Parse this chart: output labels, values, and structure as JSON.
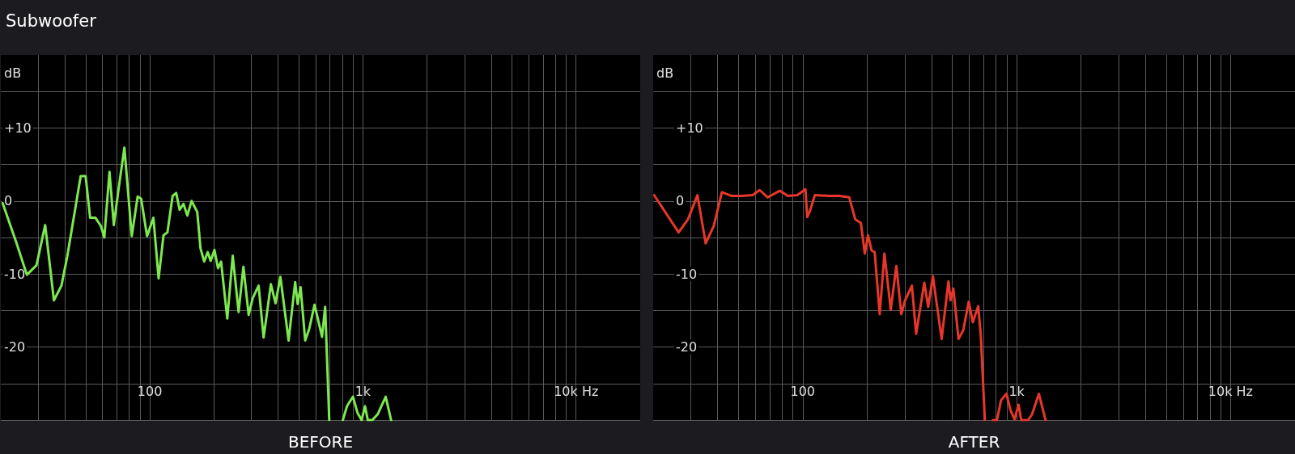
{
  "chart_data": [
    {
      "type": "line",
      "title": "Subwoofer",
      "xlabel": "BEFORE",
      "ylabel": "dB",
      "color": "#7de84f",
      "log": "x",
      "grid": true,
      "marker": "none",
      "xlim": [
        20,
        20000
      ],
      "ylim": [
        -30,
        20
      ],
      "xticks": [
        {
          "value": 30,
          "label": null
        },
        {
          "value": 40,
          "label": null
        },
        {
          "value": 50,
          "label": null
        },
        {
          "value": 60,
          "label": null
        },
        {
          "value": 70,
          "label": null
        },
        {
          "value": 80,
          "label": null
        },
        {
          "value": 90,
          "label": null
        },
        100,
        {
          "value": 200,
          "label": null
        },
        {
          "value": 300,
          "label": null
        },
        {
          "value": 400,
          "label": null
        },
        {
          "value": 500,
          "label": null
        },
        {
          "value": 600,
          "label": null
        },
        {
          "value": 700,
          "label": null
        },
        {
          "value": 800,
          "label": null
        },
        {
          "value": 900,
          "label": null
        },
        {
          "value": 1000,
          "label": "1k"
        },
        {
          "value": 2000,
          "label": null
        },
        {
          "value": 3000,
          "label": null
        },
        {
          "value": 4000,
          "label": null
        },
        {
          "value": 5000,
          "label": null
        },
        {
          "value": 6000,
          "label": null
        },
        {
          "value": 7000,
          "label": null
        },
        {
          "value": 8000,
          "label": null
        },
        {
          "value": 9000,
          "label": null
        },
        {
          "value": 10000,
          "label": "10k Hz"
        }
      ],
      "yticks": [
        {
          "value": -30,
          "label": null
        },
        {
          "value": -25,
          "label": null
        },
        -20,
        {
          "value": -15,
          "label": null
        },
        -10,
        {
          "value": -5,
          "label": null
        },
        0,
        {
          "value": 5,
          "label": null
        },
        {
          "value": 10,
          "label": "+10"
        },
        {
          "value": 15,
          "label": null
        }
      ],
      "x": [
        20.4,
        23.6,
        26.5,
        29.4,
        32.3,
        35.5,
        38.5,
        41,
        47.4,
        50,
        52.5,
        55.6,
        58.9,
        61.2,
        64.7,
        67.8,
        71.2,
        76,
        82.3,
        87.7,
        91.1,
        97.1,
        104,
        110,
        116,
        121,
        128,
        133,
        138,
        144,
        150,
        157,
        167,
        173,
        180,
        187,
        193,
        201,
        209,
        216,
        231,
        245,
        261,
        275,
        291,
        304,
        324,
        342,
        370,
        389,
        410,
        448,
        481,
        494,
        510,
        536,
        560,
        593,
        643,
        665,
        695,
        750,
        805,
        842,
        898,
        943,
        986,
        1023,
        1054,
        1107,
        1173,
        1279,
        1356
      ],
      "values": [
        -0.3,
        -5.6,
        -10.1,
        -8.8,
        -3.3,
        -13.6,
        -11.6,
        -7.6,
        3.4,
        3.4,
        -2.3,
        -2.3,
        -3.4,
        -5,
        4,
        -3.3,
        1.4,
        7.3,
        -4.8,
        0.6,
        0.3,
        -4.8,
        -2.3,
        -10.6,
        -4.7,
        -4.3,
        0.7,
        1.1,
        -1.2,
        -0.4,
        -2,
        0,
        -1.5,
        -6.5,
        -8.3,
        -7,
        -8.2,
        -6.7,
        -9.2,
        -8.3,
        -16.1,
        -7.5,
        -15.2,
        -9,
        -15.6,
        -13.3,
        -11.6,
        -18.7,
        -11.4,
        -14,
        -10.4,
        -19.1,
        -11.1,
        -14.1,
        -11.8,
        -19.1,
        -17.5,
        -14.2,
        -18.6,
        -14.5,
        -30,
        null,
        -30,
        -28.1,
        -26.8,
        -29,
        -30,
        -28.1,
        -30,
        -30,
        -29.2,
        -26.8,
        -30
      ]
    },
    {
      "type": "line",
      "xlabel": "AFTER",
      "ylabel": "dB",
      "color": "#e8372a",
      "log": "x",
      "grid": true,
      "marker": "none",
      "xlim": [
        20,
        20000
      ],
      "ylim": [
        -30,
        20
      ],
      "xticks": [
        {
          "value": 30,
          "label": null
        },
        {
          "value": 40,
          "label": null
        },
        {
          "value": 50,
          "label": null
        },
        {
          "value": 60,
          "label": null
        },
        {
          "value": 70,
          "label": null
        },
        {
          "value": 80,
          "label": null
        },
        {
          "value": 90,
          "label": null
        },
        100,
        {
          "value": 200,
          "label": null
        },
        {
          "value": 300,
          "label": null
        },
        {
          "value": 400,
          "label": null
        },
        {
          "value": 500,
          "label": null
        },
        {
          "value": 600,
          "label": null
        },
        {
          "value": 700,
          "label": null
        },
        {
          "value": 800,
          "label": null
        },
        {
          "value": 900,
          "label": null
        },
        {
          "value": 1000,
          "label": "1k"
        },
        {
          "value": 2000,
          "label": null
        },
        {
          "value": 3000,
          "label": null
        },
        {
          "value": 4000,
          "label": null
        },
        {
          "value": 5000,
          "label": null
        },
        {
          "value": 6000,
          "label": null
        },
        {
          "value": 7000,
          "label": null
        },
        {
          "value": 8000,
          "label": null
        },
        {
          "value": 9000,
          "label": null
        },
        {
          "value": 10000,
          "label": "10k Hz"
        }
      ],
      "yticks": [
        {
          "value": -30,
          "label": null
        },
        {
          "value": -25,
          "label": null
        },
        -20,
        {
          "value": -15,
          "label": null
        },
        -10,
        {
          "value": -5,
          "label": null
        },
        0,
        {
          "value": 5,
          "label": null
        },
        {
          "value": 10,
          "label": "+10"
        },
        {
          "value": 15,
          "label": null
        }
      ],
      "x": [
        20.2,
        26.3,
        29.1,
        32.2,
        35.2,
        38.4,
        41.9,
        46.4,
        52,
        58.4,
        62.9,
        68.6,
        78.1,
        85.3,
        94.4,
        103,
        105,
        108,
        114,
        132,
        148,
        165,
        176,
        187,
        195,
        202,
        210,
        217,
        229,
        241,
        258,
        274,
        289,
        301,
        324,
        339,
        370,
        386,
        406,
        446,
        480,
        491,
        506,
        535,
        563,
        597,
        624,
        661,
        680,
        710,
        740,
        774,
        809,
        845,
        896,
        935,
        977,
        1021,
        1051,
        1131,
        1181,
        1270,
        1365
      ],
      "values": [
        0.8,
        -4.3,
        -2.5,
        0.8,
        -5.8,
        -3.4,
        1.2,
        0.7,
        0.7,
        0.8,
        1.5,
        0.5,
        1.4,
        0.7,
        0.8,
        1.6,
        -2.2,
        -1.4,
        0.8,
        0.7,
        0.7,
        0.5,
        -2.5,
        -3,
        -7.2,
        -4.7,
        -6.8,
        -7,
        -15.5,
        -7.2,
        -14.9,
        -8.9,
        -15.5,
        -13.6,
        -11.6,
        -18.2,
        -11.2,
        -14.5,
        -10.3,
        -18.9,
        -11,
        -13.6,
        -12,
        -18.9,
        -17.7,
        -13.8,
        -16.6,
        -14.4,
        -18.4,
        -30,
        null,
        -30,
        -30,
        -27.3,
        -26.4,
        -28.6,
        -29.9,
        -27.9,
        -30,
        -30,
        -29.2,
        -26.4,
        -30
      ]
    }
  ]
}
